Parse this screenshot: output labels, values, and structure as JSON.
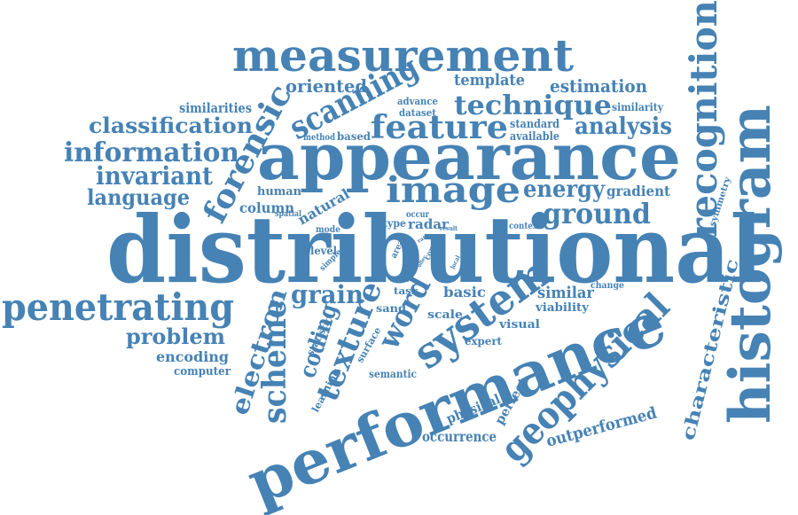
{
  "color": "#4682b4",
  "words": {
    "distributional": "distributional",
    "appearance": "appearance",
    "performance": "performance",
    "histogram": "histogram",
    "measurement": "measurement",
    "recognition": "recognition",
    "penetrating": "penetrating",
    "geophysical": "geophysical",
    "image": "image",
    "feature": "feature",
    "technique": "technique",
    "system": "system",
    "scanning": "scanning",
    "forensic": "forensic",
    "information": "information",
    "classification": "classification",
    "invariant": "invariant",
    "language": "language",
    "ground": "ground",
    "energy": "energy",
    "analysis": "analysis",
    "texture": "texture",
    "word": "word",
    "scheme": "scheme",
    "electron": "electron",
    "characteristic": "characteristic",
    "grain": "grain",
    "coding": "coding",
    "problem": "problem",
    "oriented": "oriented",
    "estimation": "estimation",
    "template": "template",
    "similarities": "similarities",
    "similarity": "similarity",
    "standard": "standard",
    "available": "available",
    "advance": "advance",
    "dataset": "dataset",
    "method": "method",
    "based": "based",
    "gradient": "gradient",
    "symmetry": "symmetry",
    "human": "human",
    "column": "column",
    "natural": "natural",
    "spatial": "spatial",
    "mode": "mode",
    "level": "level",
    "simple": "simple",
    "type": "type",
    "occur": "occur",
    "radar": "radar",
    "result": "result",
    "context": "context",
    "area": "area",
    "corpus": "corpus",
    "rate": "rate",
    "good": "good",
    "offer": "offer",
    "local": "local",
    "change": "change",
    "basic": "basic",
    "similar": "similar",
    "viability": "viability",
    "task": "task",
    "sand": "sand",
    "scale": "scale",
    "visual": "visual",
    "expert": "expert",
    "statistic": "statistic",
    "surface": "surface",
    "learning": "learning",
    "semantic": "semantic",
    "physical": "physical",
    "perfect": "perfect",
    "occurrence": "occurrence",
    "outperformed": "outperformed",
    "encoding": "encoding",
    "computer": "computer"
  }
}
